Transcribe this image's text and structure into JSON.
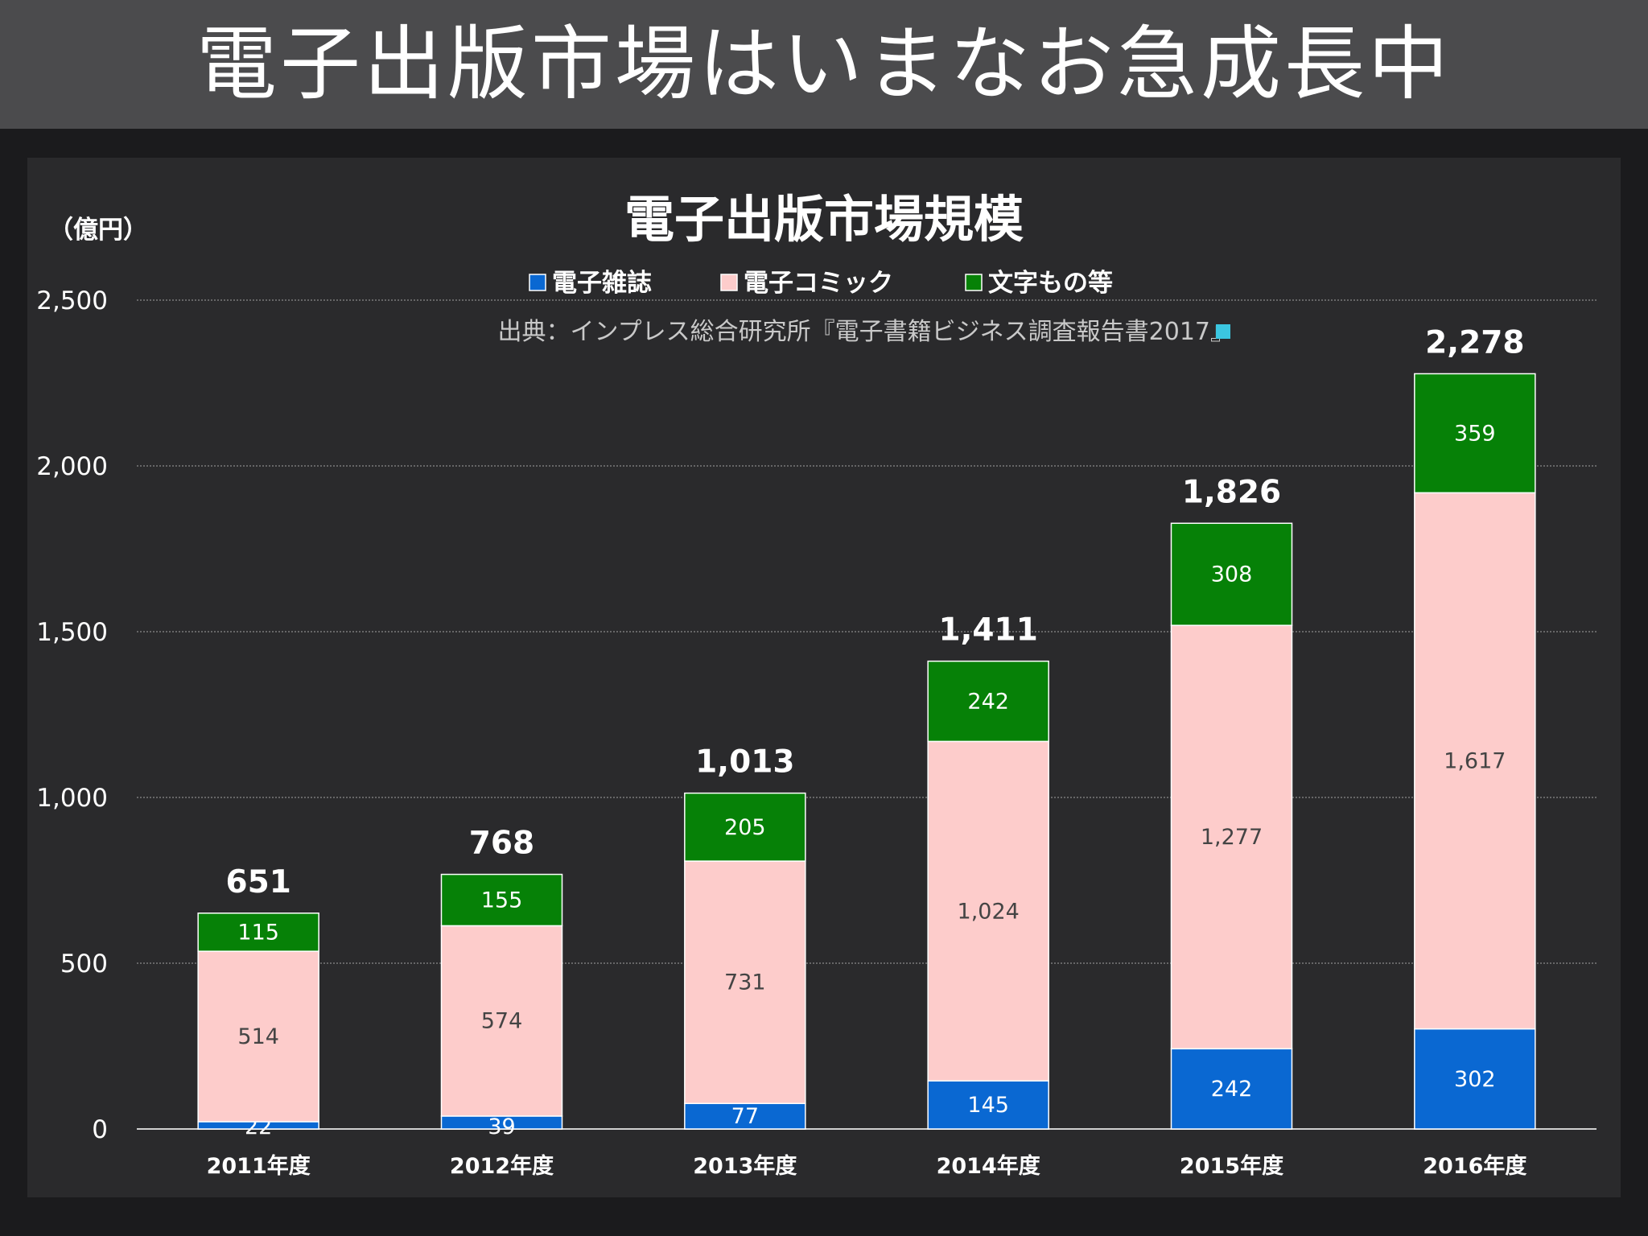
{
  "header": {
    "title": "電子出版市場はいまなお急成長中"
  },
  "chart_data": {
    "type": "bar",
    "stacked": true,
    "title": "電子出版市場規模",
    "ylabel": "（億円）",
    "xlabel": "",
    "source": "出典：インプレス総合研究所『電子書籍ビジネス調査報告書2017』",
    "ylim": [
      0,
      2500
    ],
    "yticks": [
      0,
      500,
      1000,
      1500,
      2000,
      2500
    ],
    "ytick_labels": [
      "0",
      "500",
      "1,000",
      "1,500",
      "2,000",
      "2,500"
    ],
    "grid": true,
    "legend_position": "top-center",
    "categories": [
      "2011年度",
      "2012年度",
      "2013年度",
      "2014年度",
      "2015年度",
      "2016年度"
    ],
    "series": [
      {
        "name": "電子雑誌",
        "color": "#0a68d2",
        "label_color": "#ffffff",
        "values": [
          22,
          39,
          77,
          145,
          242,
          302
        ],
        "labels": [
          "22",
          "39",
          "77",
          "145",
          "242",
          "302"
        ]
      },
      {
        "name": "電子コミック",
        "color": "#fdcccb",
        "label_color": "#444444",
        "values": [
          514,
          574,
          731,
          1024,
          1277,
          1617
        ],
        "labels": [
          "514",
          "574",
          "731",
          "1,024",
          "1,277",
          "1,617"
        ]
      },
      {
        "name": "文字もの等",
        "color": "#068107",
        "label_color": "#ffffff",
        "values": [
          115,
          155,
          205,
          242,
          308,
          359
        ],
        "labels": [
          "115",
          "155",
          "205",
          "242",
          "308",
          "359"
        ]
      }
    ],
    "totals": [
      651,
      768,
      1013,
      1411,
      1826,
      2278
    ],
    "total_labels": [
      "651",
      "768",
      "1,013",
      "1,411",
      "1,826",
      "2,278"
    ],
    "colors": {
      "background": "#2a2a2c",
      "gridline": "#8a8a8a",
      "axis": "#d0d0d0",
      "source_marker": "#3bc6e0"
    }
  }
}
